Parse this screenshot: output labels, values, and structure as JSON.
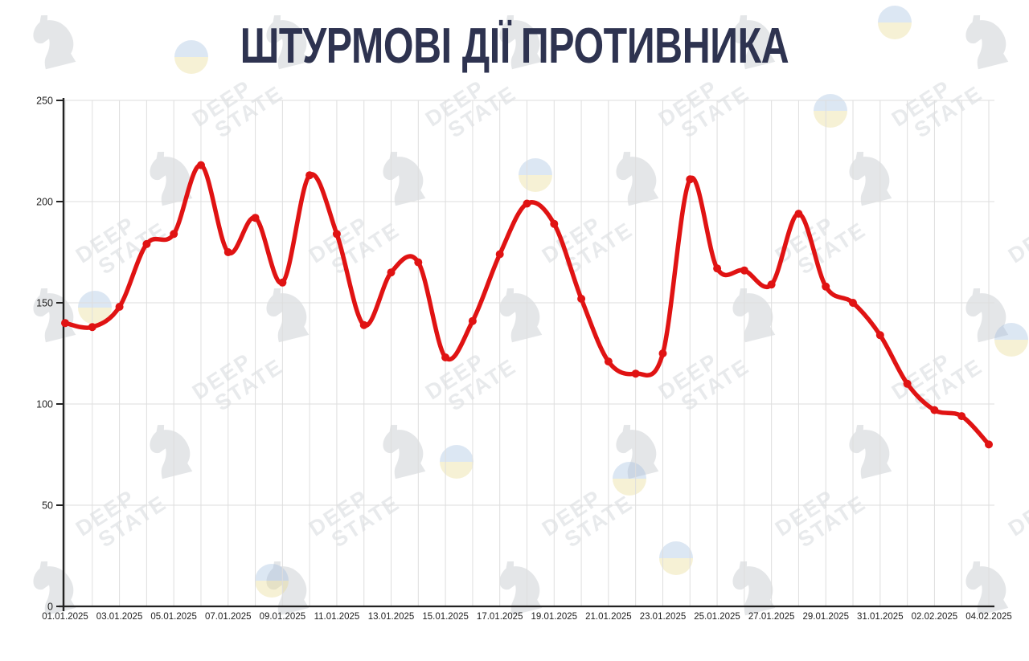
{
  "title": "ШТУРМОВІ ДІЇ ПРОТИВНИКА",
  "watermark": {
    "line1": "DEEP",
    "line2": "STATE"
  },
  "colors": {
    "line": "#e01313",
    "title": "#2e3350",
    "grid": "#dedede",
    "axis": "#222222",
    "tick_text": "#1f1f1f",
    "background": "#ffffff",
    "watermark_blue": "#9dbbdd",
    "watermark_yellow": "#e8d98a"
  },
  "chart_data": {
    "type": "line",
    "title": "ШТУРМОВІ ДІЇ ПРОТИВНИКА",
    "x": [
      "01.01.2025",
      "02.01.2025",
      "03.01.2025",
      "04.01.2025",
      "05.01.2025",
      "06.01.2025",
      "07.01.2025",
      "08.01.2025",
      "09.01.2025",
      "10.01.2025",
      "11.01.2025",
      "12.01.2025",
      "13.01.2025",
      "14.01.2025",
      "15.01.2025",
      "16.01.2025",
      "17.01.2025",
      "18.01.2025",
      "19.01.2025",
      "20.01.2025",
      "21.01.2025",
      "22.01.2025",
      "23.01.2025",
      "24.01.2025",
      "25.01.2025",
      "26.01.2025",
      "27.01.2025",
      "28.01.2025",
      "29.01.2025",
      "30.01.2025",
      "31.01.2025",
      "01.02.2025",
      "02.02.2025",
      "03.02.2025",
      "04.02.2025"
    ],
    "values": [
      140,
      138,
      148,
      179,
      184,
      218,
      175,
      192,
      160,
      213,
      184,
      139,
      165,
      170,
      123,
      141,
      174,
      199,
      189,
      152,
      121,
      115,
      125,
      211,
      167,
      166,
      159,
      194,
      158,
      150,
      134,
      110,
      97,
      94,
      80
    ],
    "x_tick_labels": [
      "01.01.2025",
      "03.01.2025",
      "05.01.2025",
      "07.01.2025",
      "09.01.2025",
      "11.01.2025",
      "13.01.2025",
      "15.01.2025",
      "17.01.2025",
      "19.01.2025",
      "21.01.2025",
      "23.01.2025",
      "25.01.2025",
      "27.01.2025",
      "29.01.2025",
      "31.01.2025",
      "02.02.2025",
      "04.02.2025"
    ],
    "xlabel": "",
    "ylabel": "",
    "ylim": [
      0,
      250
    ],
    "yticks": [
      0,
      50,
      100,
      150,
      200,
      250
    ],
    "grid": true,
    "smooth": true,
    "markers": true,
    "legend": "none",
    "line_color": "#e01313"
  }
}
